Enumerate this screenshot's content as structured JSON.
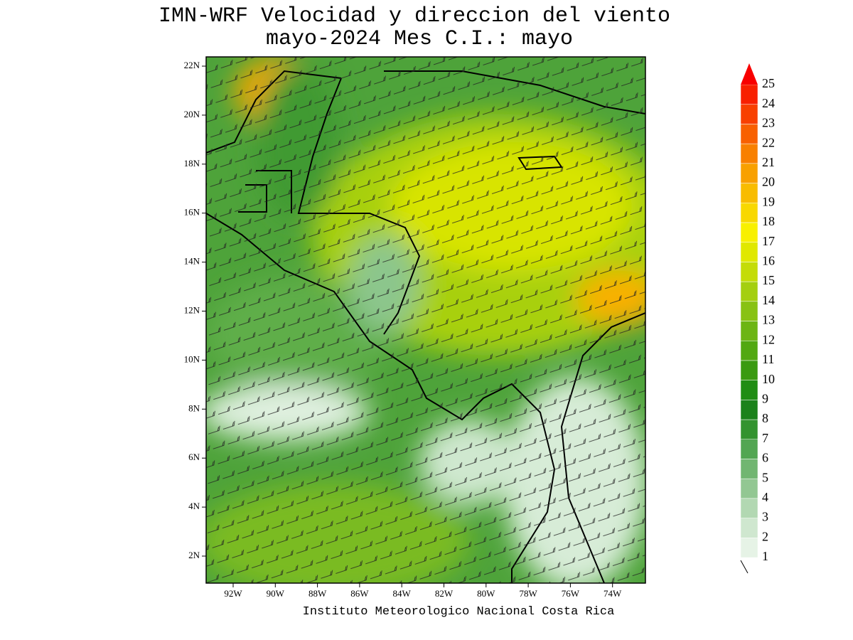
{
  "title": [
    "IMN-WRF Velocidad y direccion del viento",
    "mayo-2024 Mes C.I.: mayo"
  ],
  "map": {
    "lat_ticks": [
      "22N",
      "20N",
      "18N",
      "16N",
      "14N",
      "12N",
      "10N",
      "8N",
      "6N",
      "4N",
      "2N"
    ],
    "lon_ticks": [
      "92W",
      "90W",
      "88W",
      "86W",
      "84W",
      "82W",
      "80W",
      "78W",
      "76W",
      "74W"
    ]
  },
  "colorbar": {
    "levels": [
      1,
      2,
      3,
      4,
      5,
      6,
      7,
      8,
      9,
      10,
      11,
      12,
      13,
      14,
      15,
      16,
      17,
      18,
      19,
      20,
      21,
      22,
      23,
      24,
      25
    ],
    "colors": [
      "#e6f3e6",
      "#cfe7cf",
      "#b2d8b2",
      "#92c792",
      "#71b671",
      "#52a652",
      "#33932f",
      "#1b821b",
      "#208d14",
      "#3a9a10",
      "#52a812",
      "#6cb514",
      "#88c214",
      "#a4cf10",
      "#c4dc08",
      "#e0e800",
      "#f8f000",
      "#f8d800",
      "#f8bc00",
      "#f8a000",
      "#f88000",
      "#f86000",
      "#f84000",
      "#f82000",
      "#f80000"
    ]
  },
  "footer": "Instituto Meteorologico Nacional Costa Rica"
}
